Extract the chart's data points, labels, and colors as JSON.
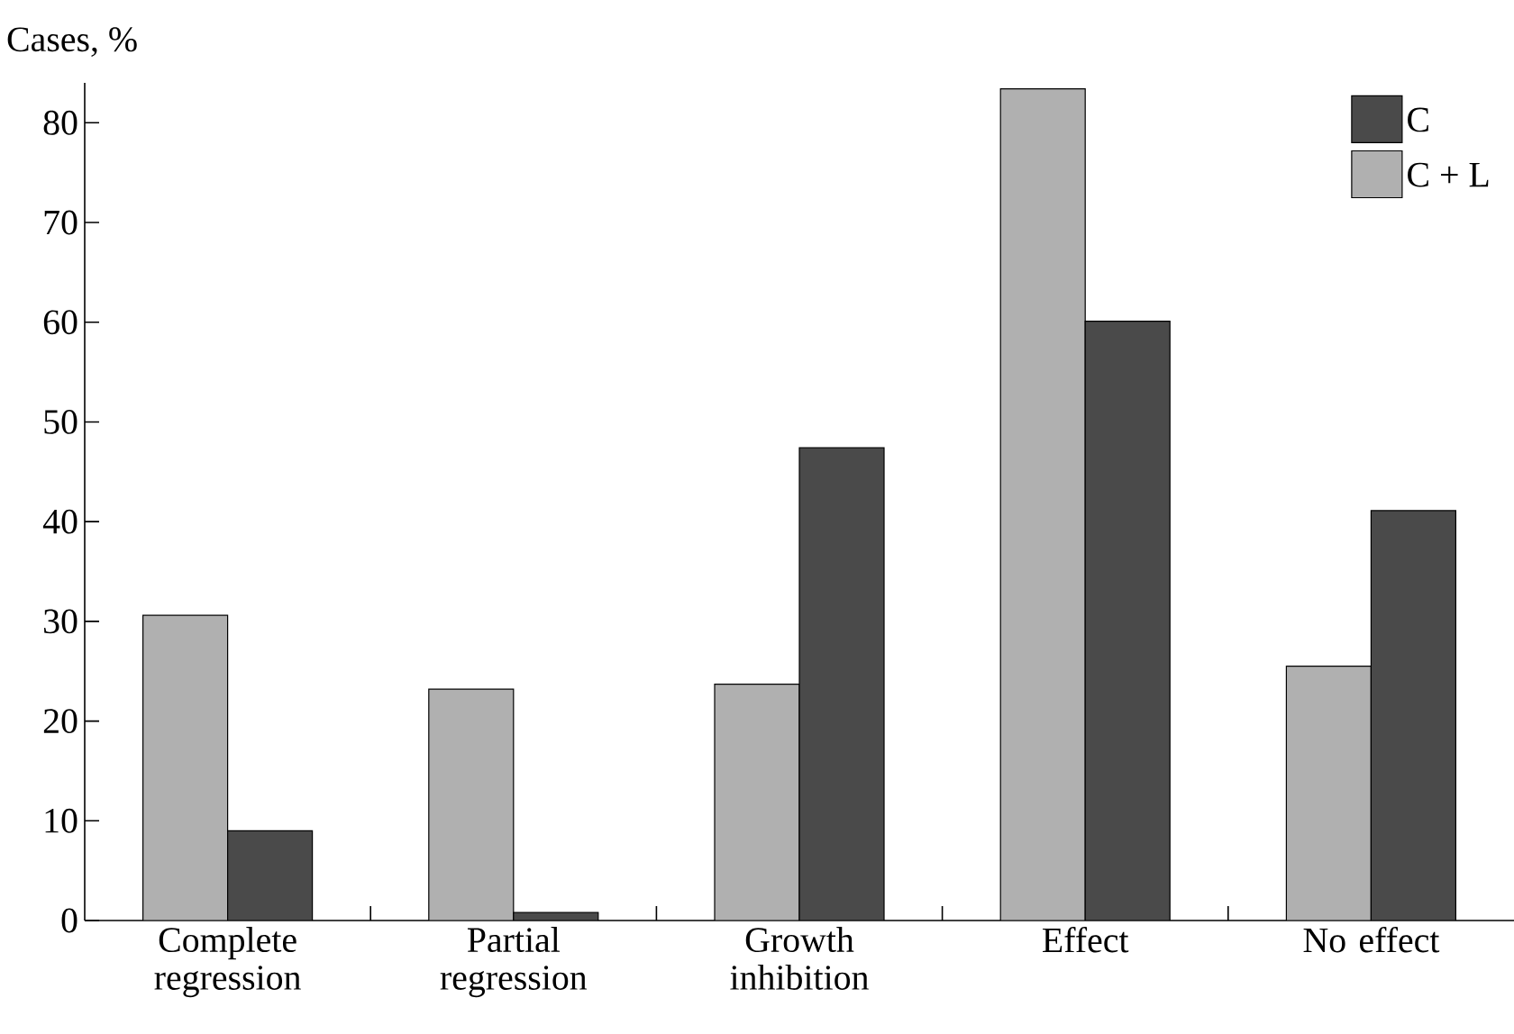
{
  "chart_data": {
    "type": "bar",
    "ylabel": "Cases, %",
    "categories": [
      "Complete regression",
      "Partial regression",
      "Growth inhibition",
      "Effect",
      "No effect"
    ],
    "series": [
      {
        "name": "C + L",
        "color": "#b0b0b0",
        "values": [
          30.6,
          23.2,
          23.7,
          83.4,
          25.5
        ]
      },
      {
        "name": "C",
        "color": "#4a4a4a",
        "values": [
          9.0,
          0.8,
          47.4,
          60.1,
          41.1
        ]
      }
    ],
    "ylim": [
      0,
      84
    ],
    "yticks": [
      0,
      10,
      20,
      30,
      40,
      50,
      60,
      70,
      80
    ],
    "legend": "top right",
    "grid": false
  }
}
